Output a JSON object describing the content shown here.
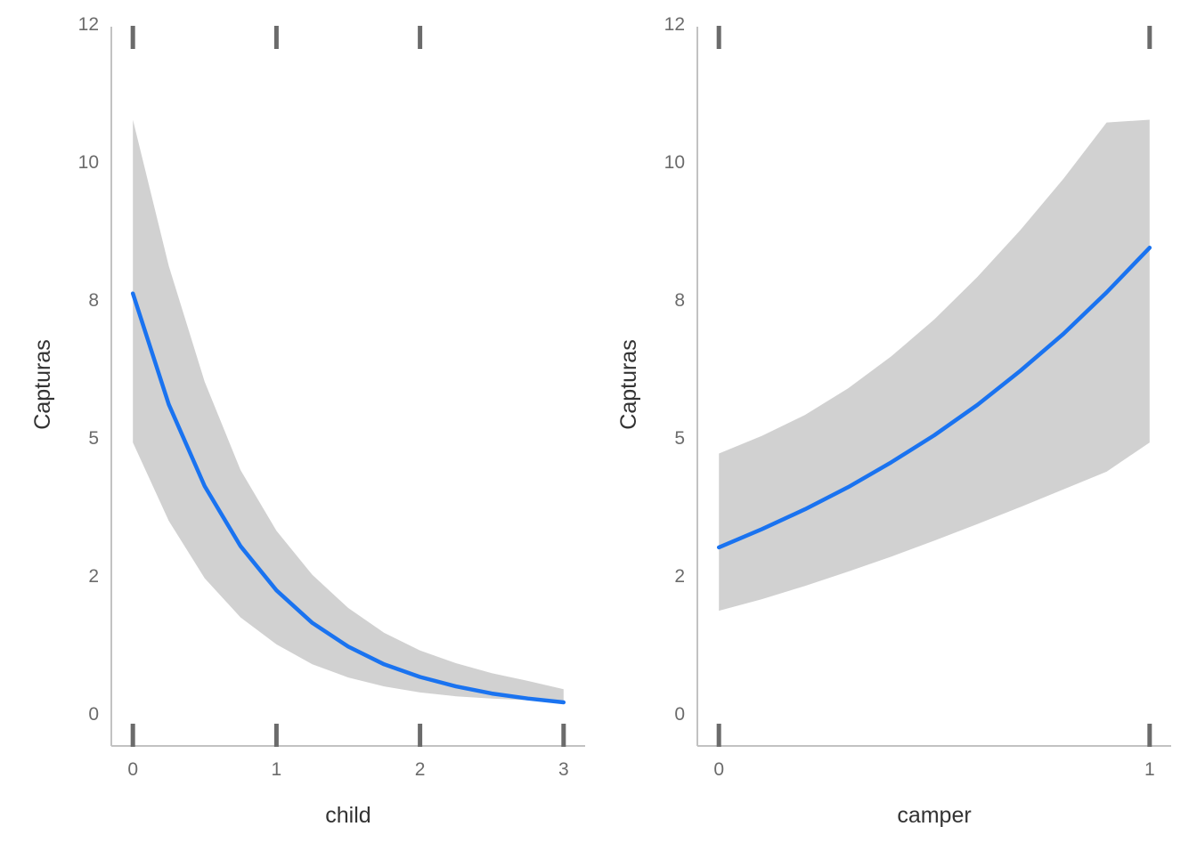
{
  "chart_data": [
    {
      "type": "line",
      "title": "",
      "xlabel": "child",
      "ylabel": "Capturas",
      "x_ticks": [
        0,
        1,
        2,
        3
      ],
      "x_tick_labels": [
        "0",
        "1",
        "2",
        "3"
      ],
      "y_ticks": [
        0,
        2.5,
        5,
        7.5,
        10,
        12.5
      ],
      "y_tick_labels": [
        "0",
        "2",
        "5",
        "8",
        "10",
        "12"
      ],
      "xlim": [
        -0.15,
        3.15
      ],
      "ylim": [
        -0.6,
        12.5
      ],
      "rug_top": [
        0,
        1,
        2
      ],
      "rug_bottom": [
        0,
        1,
        2,
        3
      ],
      "grid": false,
      "line_color": "#1a73f0",
      "band_color": "#d1d1d1",
      "series": [
        {
          "x": [
            0,
            0.25,
            0.5,
            0.75,
            1,
            1.25,
            1.5,
            1.75,
            2,
            2.25,
            2.5,
            2.75,
            3
          ],
          "values": [
            7.6,
            5.59,
            4.11,
            3.02,
            2.22,
            1.63,
            1.2,
            0.88,
            0.65,
            0.48,
            0.35,
            0.26,
            0.19
          ],
          "lower": [
            4.9,
            3.48,
            2.44,
            1.73,
            1.24,
            0.88,
            0.64,
            0.48,
            0.37,
            0.3,
            0.26,
            0.23,
            0.2
          ],
          "upper": [
            10.75,
            8.1,
            6.0,
            4.4,
            3.3,
            2.5,
            1.9,
            1.45,
            1.13,
            0.9,
            0.72,
            0.58,
            0.43
          ]
        }
      ]
    },
    {
      "type": "line",
      "title": "",
      "xlabel": "camper",
      "ylabel": "Capturas",
      "x_ticks": [
        0,
        1
      ],
      "x_tick_labels": [
        "0",
        "1"
      ],
      "y_ticks": [
        0,
        2.5,
        5,
        7.5,
        10,
        12.5
      ],
      "y_tick_labels": [
        "0",
        "2",
        "5",
        "8",
        "10",
        "12"
      ],
      "xlim": [
        -0.05,
        1.05
      ],
      "ylim": [
        -0.6,
        12.5
      ],
      "rug_top": [
        0,
        1
      ],
      "rug_bottom": [
        0,
        1
      ],
      "grid": false,
      "line_color": "#1a73f0",
      "band_color": "#d1d1d1",
      "series": [
        {
          "x": [
            0,
            0.1,
            0.2,
            0.3,
            0.4,
            0.5,
            0.6,
            0.7,
            0.8,
            0.9,
            1
          ],
          "values": [
            3.0,
            3.33,
            3.69,
            4.09,
            4.54,
            5.03,
            5.58,
            6.2,
            6.87,
            7.62,
            8.43
          ],
          "lower": [
            1.85,
            2.06,
            2.3,
            2.56,
            2.83,
            3.12,
            3.42,
            3.73,
            4.05,
            4.37,
            4.9
          ],
          "upper": [
            4.7,
            5.02,
            5.4,
            5.88,
            6.46,
            7.13,
            7.9,
            8.75,
            9.68,
            10.7,
            10.75
          ]
        }
      ]
    }
  ]
}
